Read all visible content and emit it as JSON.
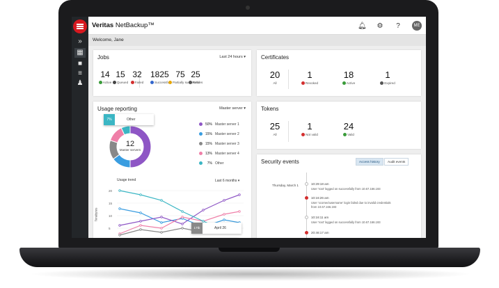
{
  "app": {
    "brand_bold": "Veritas",
    "brand_light": "NetBackup™",
    "welcome": "Welcome, Jane",
    "avatar_initials": "ME"
  },
  "jobs": {
    "title": "Jobs",
    "range": "Last 24 hours",
    "stats": [
      {
        "value": "14",
        "label": "Active",
        "icon": "running-icon",
        "color": "#3a9b3a"
      },
      {
        "value": "15",
        "label": "Queued",
        "icon": "clock-icon",
        "color": "#444444"
      },
      {
        "value": "32",
        "label": "Failed",
        "icon": "error-icon",
        "color": "#d32f2f"
      },
      {
        "value": "1825",
        "label": "Successful",
        "icon": "arrow-up-icon",
        "color": "#3366cc"
      },
      {
        "value": "75",
        "label": "Partially successful",
        "icon": "person-icon",
        "color": "#e6a500"
      },
      {
        "value": "25",
        "label": "Retries",
        "icon": "retry-icon",
        "color": "#555555"
      }
    ]
  },
  "certificates": {
    "title": "Certificates",
    "stats": [
      {
        "value": "20",
        "label": "All"
      },
      {
        "value": "1",
        "label": "Revoked",
        "color": "#d32f2f"
      },
      {
        "value": "18",
        "label": "Active",
        "color": "#3a9b3a"
      },
      {
        "value": "1",
        "label": "Expired",
        "color": "#555555"
      }
    ]
  },
  "usage": {
    "title": "Usage reporting",
    "filter": "Master server",
    "tooltip_pct": "7%",
    "tooltip_label": "Other",
    "donut_center_value": "12",
    "donut_center_label": "Master servers",
    "legend": [
      {
        "pct": "50%",
        "label": "Master server 1",
        "color": "#8e56c5"
      },
      {
        "pct": "15%",
        "label": "Master server 2",
        "color": "#3a9de0"
      },
      {
        "pct": "15%",
        "label": "Master server 3",
        "color": "#888888"
      },
      {
        "pct": "13%",
        "label": "Master server 4",
        "color": "#ef7fa8"
      },
      {
        "pct": "7%",
        "label": "Other",
        "color": "#3bb6c4"
      }
    ],
    "trend_title": "Usage trend",
    "trend_range": "Last 6 months",
    "y_label": "Terabytes",
    "y_ticks": [
      "20",
      "15",
      "10",
      "5"
    ],
    "hover_value": "17tb",
    "hover_label": "April 26"
  },
  "tokens": {
    "title": "Tokens",
    "stats": [
      {
        "value": "25",
        "label": "All"
      },
      {
        "value": "1",
        "label": "Not valid",
        "color": "#d32f2f"
      },
      {
        "value": "24",
        "label": "Valid",
        "color": "#3a9b3a"
      }
    ]
  },
  "security": {
    "title": "Security events",
    "tab_access": "Access history",
    "tab_audit": "Audit events",
    "date": "Thursday, March 1",
    "events": [
      {
        "time": "10:29:18 am",
        "msg": "User 'root' logged on successfully from 10.67.166.193",
        "color": "#bbbbbb"
      },
      {
        "time": "10:16:26 am",
        "msg": "User 'xcomeo\\username' login failed due to invalid credentials from 10.67.166.193",
        "color": "#d32f2f"
      },
      {
        "time": "10:16:11 am",
        "msg": "User 'root' logged on successfully from 10.67.166.193",
        "color": "#bbbbbb"
      },
      {
        "time": "20:46:17 am",
        "msg": "",
        "color": "#d32f2f"
      }
    ]
  }
}
